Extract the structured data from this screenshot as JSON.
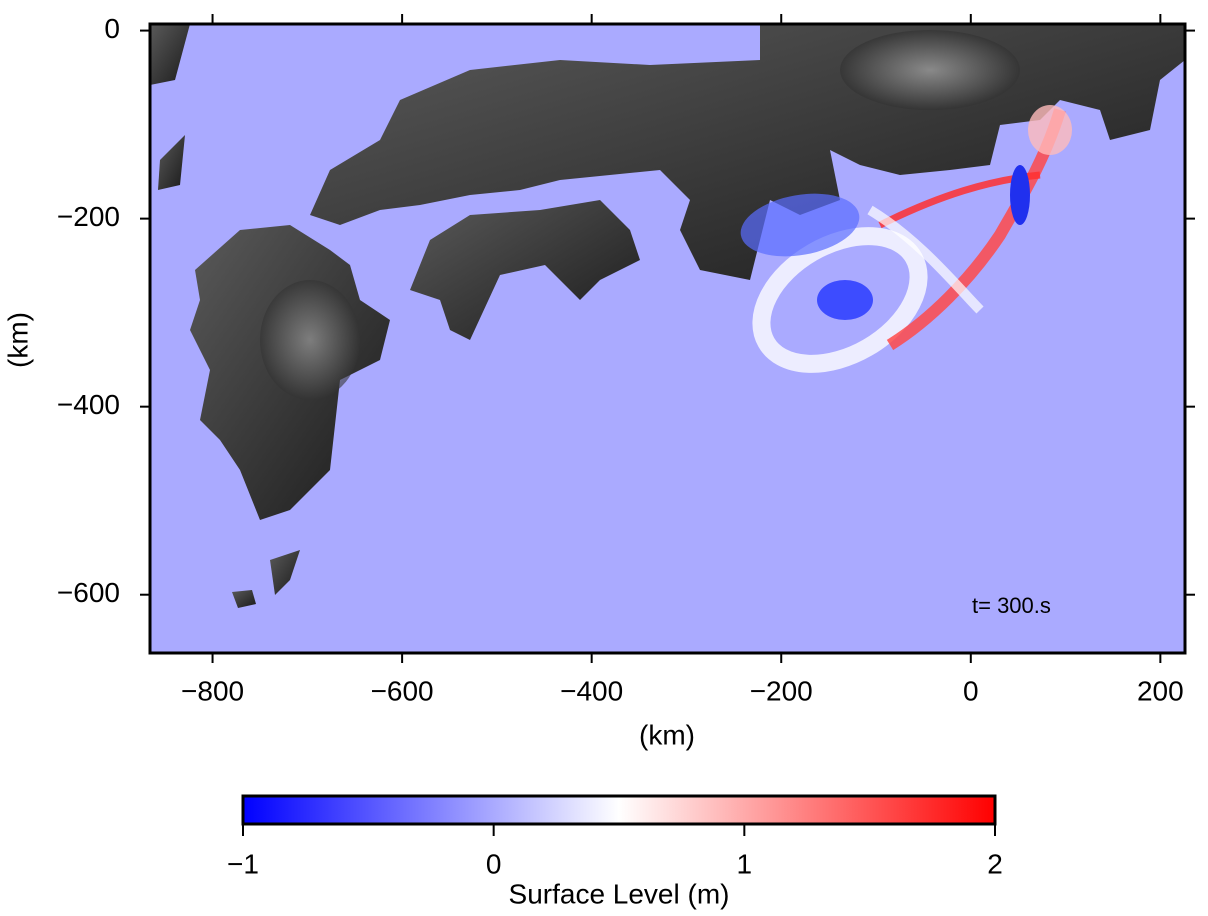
{
  "chart_data": {
    "type": "map",
    "xlabel": "(km)",
    "ylabel": "(km)",
    "xlim": [
      -866,
      226
    ],
    "ylim": [
      -662,
      7
    ],
    "xticks": [
      {
        "value": -800,
        "label": "−800"
      },
      {
        "value": -600,
        "label": "−600"
      },
      {
        "value": -400,
        "label": "−400"
      },
      {
        "value": -200,
        "label": "−200"
      },
      0,
      200
    ],
    "yticks": [
      0,
      {
        "value": -200,
        "label": "−200"
      },
      {
        "value": -400,
        "label": "−400"
      },
      {
        "value": -600,
        "label": "−600"
      }
    ],
    "annotation": "t= 300.s",
    "colorbar": {
      "label": "Surface Level (m)",
      "lim": [
        -1,
        2
      ],
      "ticks": [
        {
          "value": -1,
          "label": "−1"
        },
        0,
        1,
        2
      ],
      "colors": [
        "#0000ff",
        "#ffffff",
        "#ff0000"
      ]
    }
  }
}
